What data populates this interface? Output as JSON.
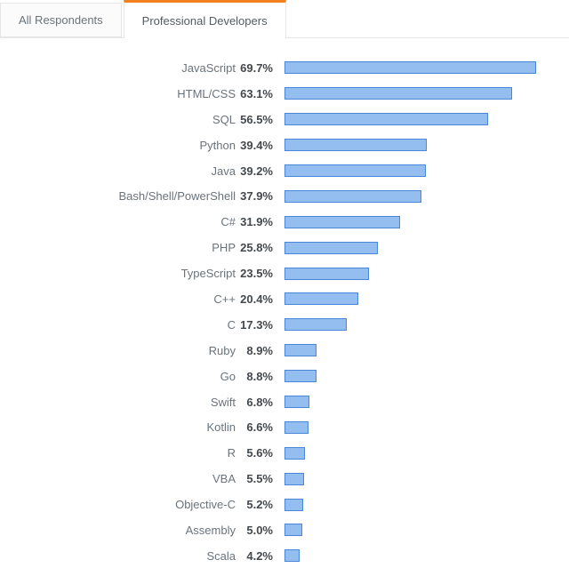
{
  "tabs": {
    "items": [
      {
        "label": "All Respondents",
        "active": false
      },
      {
        "label": "Professional Developers",
        "active": true
      }
    ]
  },
  "chart_data": {
    "type": "bar",
    "orientation": "horizontal",
    "title": "",
    "xlabel": "",
    "ylabel": "",
    "grid": false,
    "legend": "none",
    "xlim": [
      0,
      71.5
    ],
    "value_suffix": "%",
    "categories": [
      "JavaScript",
      "HTML/CSS",
      "SQL",
      "Python",
      "Java",
      "Bash/Shell/PowerShell",
      "C#",
      "PHP",
      "TypeScript",
      "C++",
      "C",
      "Ruby",
      "Go",
      "Swift",
      "Kotlin",
      "R",
      "VBA",
      "Objective-C",
      "Assembly",
      "Scala"
    ],
    "values": [
      69.7,
      63.1,
      56.5,
      39.4,
      39.2,
      37.9,
      31.9,
      25.8,
      23.5,
      20.4,
      17.3,
      8.9,
      8.8,
      6.8,
      6.6,
      5.6,
      5.5,
      5.2,
      5.0,
      4.2
    ],
    "value_labels": [
      "69.7%",
      "63.1%",
      "56.5%",
      "39.4%",
      "39.2%",
      "37.9%",
      "31.9%",
      "25.8%",
      "23.5%",
      "20.4%",
      "17.3%",
      "8.9%",
      "8.8%",
      "6.8%",
      "6.6%",
      "5.6%",
      "5.5%",
      "5.2%",
      "5.0%",
      "4.2%"
    ]
  },
  "colors": {
    "accent_orange": "#f48024",
    "tab_border": "#e4e6e8",
    "inactive_tab_bg": "#fbfbfb",
    "bar_fill": "#94bdf0",
    "bar_border": "#4a86d8",
    "label_text": "#6a737c",
    "value_text": "#43484d"
  }
}
